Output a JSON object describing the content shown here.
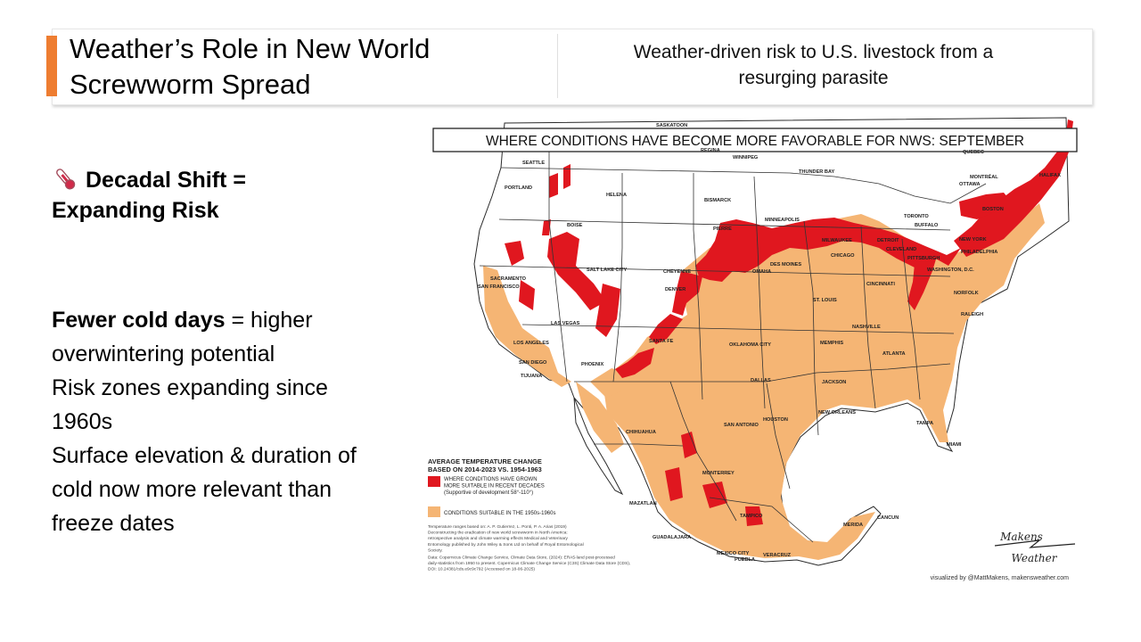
{
  "slide": {
    "title": "Weather’s Role in New World\nScrewworm Spread",
    "subtitle": "Weather-driven risk to U.S. livestock from a\nresurging parasite"
  },
  "content": {
    "heading": "Decadal Shift = Expanding Risk",
    "heading_icon": "thermometer-icon",
    "bullets": [
      {
        "bold": "Fewer cold days",
        "text": " = higher overwintering potential"
      },
      {
        "bold": "",
        "text": "Risk zones expanding since 1960s"
      },
      {
        "bold": "",
        "text": "Surface elevation & duration of cold now more relevant than freeze dates"
      }
    ]
  },
  "map": {
    "title": "WHERE CONDITIONS HAVE BECOME MORE FAVORABLE FOR NWS: SEPTEMBER",
    "colors": {
      "grown": "#e0171f",
      "suitable": "#f5b574",
      "land": "#ffffff",
      "border": "#2a2a2a",
      "water": "#ffffff"
    },
    "cities": [
      "SEATTLE",
      "PORTLAND",
      "HELENA",
      "BOISE",
      "BISMARCK",
      "WINNIPEG",
      "THUNDER BAY",
      "REGINA",
      "SASKATOON",
      "QUEBEC",
      "MONTRÉAL",
      "OTTAWA",
      "HALIFAX",
      "TORONTO",
      "BUFFALO",
      "BOSTON",
      "NEW YORK",
      "PHILADELPHIA",
      "WASHINGTON, D.C.",
      "PITTSBURGH",
      "CLEVELAND",
      "DETROIT",
      "MILWAUKEE",
      "CHICAGO",
      "MINNEAPOLIS",
      "PIERRE",
      "DES MOINES",
      "OMAHA",
      "CHEYENNE",
      "SALT LAKE CITY",
      "DENVER",
      "SACRAMENTO",
      "SAN FRANCISCO",
      "LAS VEGAS",
      "LOS ANGELES",
      "SAN DIEGO",
      "TIJUANA",
      "PHOENIX",
      "SANTA FE",
      "OKLAHOMA CITY",
      "ST. LOUIS",
      "CINCINNATI",
      "NASHVILLE",
      "MEMPHIS",
      "ATLANTA",
      "RALEIGH",
      "NORFOLK",
      "DALLAS",
      "JACKSON",
      "SAN ANTONIO",
      "HOUSTON",
      "NEW ORLEANS",
      "TAMPA",
      "MIAMI",
      "CHIHUAHUA",
      "MONTERREY",
      "MAZATLAN",
      "TAMPICO",
      "GUADALAJARA",
      "MEXICO CITY",
      "PUEBLA",
      "VERACRUZ",
      "MERIDA",
      "CANCUN"
    ],
    "legend": {
      "title": "AVERAGE TEMPERATURE CHANGE\nBASED ON 2014-2023 VS. 1954-1963",
      "items": [
        {
          "label": "WHERE CONDITIONS HAVE GROWN\nMORE SUITABLE IN RECENT DECADES\n(Supportive of development 58°-110°)",
          "color": "#e0171f"
        },
        {
          "label": "CONDITIONS SUITABLE IN THE 1950s-1960s",
          "color": "#f5b574"
        }
      ],
      "source": "Temperature ranges based on: A. P. Gutierrez, L. Ponti, P. A. Arias (2019)\nDeconstructing the eradication of new world screwworm in North America:\nretrospective analysis and climate warming effects Medical and Veterinary\nEntomology published by John Wiley & Sons Ltd on behalf of Royal Entomological\nSociety.\nData: Copernicus Climate Change Service, Climate Data Store, (2024): ERA5-land post-processed\ndaily-statistics from 1950 to present. Copernicus Climate Change Service (C3S) Climate Data Store (CDS),\nDOI: 10.24381/cds.e9c9c792 (Accessed on 18-06-2025)"
    },
    "logo": {
      "top": "Makens",
      "bottom": "Weather"
    },
    "credit": "visualized by @MattMakens, makensweather.com"
  }
}
